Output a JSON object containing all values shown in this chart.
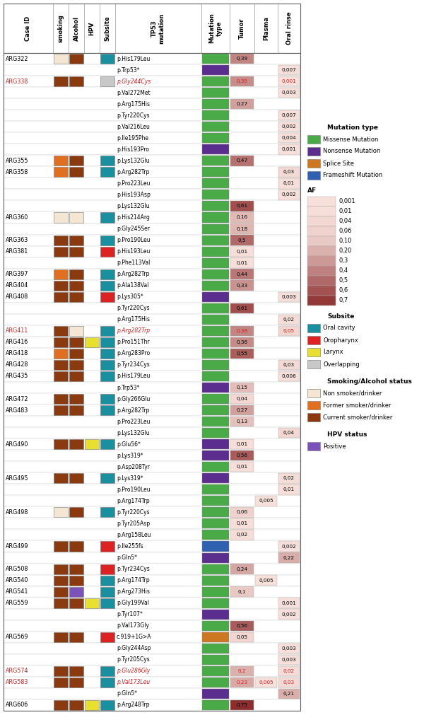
{
  "rows": [
    {
      "case": "ARG322",
      "case_red": false,
      "smoking": "light",
      "alcohol": "brown",
      "hpv": null,
      "subsite": "teal",
      "mutation": "p.His179Leu",
      "mut_red": false,
      "mut_type": "green",
      "tumor": 0.39,
      "plasma": null,
      "oral": null
    },
    {
      "case": "",
      "case_red": false,
      "smoking": null,
      "alcohol": null,
      "hpv": null,
      "subsite": null,
      "mutation": "p.Trp53*",
      "mut_red": false,
      "mut_type": "purple",
      "tumor": null,
      "plasma": null,
      "oral": 0.007
    },
    {
      "case": "ARG338",
      "case_red": true,
      "smoking": "brown",
      "alcohol": "brown",
      "hpv": null,
      "subsite": "gray",
      "mutation": "p.Gly244Cys",
      "mut_red": true,
      "mut_type": "green",
      "tumor": 0.35,
      "plasma": null,
      "oral": 0.001
    },
    {
      "case": "",
      "case_red": false,
      "smoking": null,
      "alcohol": null,
      "hpv": null,
      "subsite": null,
      "mutation": "p.Val272Met",
      "mut_red": false,
      "mut_type": "green",
      "tumor": null,
      "plasma": null,
      "oral": 0.003
    },
    {
      "case": "",
      "case_red": false,
      "smoking": null,
      "alcohol": null,
      "hpv": null,
      "subsite": null,
      "mutation": "p.Arg175His",
      "mut_red": false,
      "mut_type": "green",
      "tumor": 0.27,
      "plasma": null,
      "oral": null
    },
    {
      "case": "",
      "case_red": false,
      "smoking": null,
      "alcohol": null,
      "hpv": null,
      "subsite": null,
      "mutation": "p.Tyr220Cys",
      "mut_red": false,
      "mut_type": "green",
      "tumor": null,
      "plasma": null,
      "oral": 0.007
    },
    {
      "case": "",
      "case_red": false,
      "smoking": null,
      "alcohol": null,
      "hpv": null,
      "subsite": null,
      "mutation": "p.Val216Leu",
      "mut_red": false,
      "mut_type": "green",
      "tumor": null,
      "plasma": null,
      "oral": 0.002
    },
    {
      "case": "",
      "case_red": false,
      "smoking": null,
      "alcohol": null,
      "hpv": null,
      "subsite": null,
      "mutation": "p.Ile195Phe",
      "mut_red": false,
      "mut_type": "green",
      "tumor": null,
      "plasma": null,
      "oral": 0.004
    },
    {
      "case": "",
      "case_red": false,
      "smoking": null,
      "alcohol": null,
      "hpv": null,
      "subsite": null,
      "mutation": "p.His193Pro",
      "mut_red": false,
      "mut_type": "purple",
      "tumor": null,
      "plasma": null,
      "oral": 0.001
    },
    {
      "case": "ARG355",
      "case_red": false,
      "smoking": "orange",
      "alcohol": "brown",
      "hpv": null,
      "subsite": "teal",
      "mutation": "p.Lys132Glu",
      "mut_red": false,
      "mut_type": "green",
      "tumor": 0.47,
      "plasma": null,
      "oral": null
    },
    {
      "case": "ARG358",
      "case_red": false,
      "smoking": "orange",
      "alcohol": "brown",
      "hpv": null,
      "subsite": "teal",
      "mutation": "p.Arg282Trp",
      "mut_red": false,
      "mut_type": "green",
      "tumor": null,
      "plasma": null,
      "oral": 0.03
    },
    {
      "case": "",
      "case_red": false,
      "smoking": null,
      "alcohol": null,
      "hpv": null,
      "subsite": null,
      "mutation": "p.Pro223Leu",
      "mut_red": false,
      "mut_type": "green",
      "tumor": null,
      "plasma": null,
      "oral": 0.01
    },
    {
      "case": "",
      "case_red": false,
      "smoking": null,
      "alcohol": null,
      "hpv": null,
      "subsite": null,
      "mutation": "p.His193Asp",
      "mut_red": false,
      "mut_type": "green",
      "tumor": null,
      "plasma": null,
      "oral": 0.002
    },
    {
      "case": "",
      "case_red": false,
      "smoking": null,
      "alcohol": null,
      "hpv": null,
      "subsite": null,
      "mutation": "p.Lys132Glu",
      "mut_red": false,
      "mut_type": "green",
      "tumor": 0.61,
      "plasma": null,
      "oral": null
    },
    {
      "case": "ARG360",
      "case_red": false,
      "smoking": "light",
      "alcohol": "light",
      "hpv": null,
      "subsite": "teal",
      "mutation": "p.His214Arg",
      "mut_red": false,
      "mut_type": "green",
      "tumor": 0.16,
      "plasma": null,
      "oral": null
    },
    {
      "case": "",
      "case_red": false,
      "smoking": null,
      "alcohol": null,
      "hpv": null,
      "subsite": null,
      "mutation": "p.Gly245Ser",
      "mut_red": false,
      "mut_type": "green",
      "tumor": 0.18,
      "plasma": null,
      "oral": null
    },
    {
      "case": "ARG363",
      "case_red": false,
      "smoking": "brown",
      "alcohol": "brown",
      "hpv": null,
      "subsite": "teal",
      "mutation": "p.Pro190Leu",
      "mut_red": false,
      "mut_type": "green",
      "tumor": 0.5,
      "plasma": null,
      "oral": null
    },
    {
      "case": "ARG381",
      "case_red": false,
      "smoking": "brown",
      "alcohol": "brown",
      "hpv": null,
      "subsite": "red",
      "mutation": "p.His193Leu",
      "mut_red": false,
      "mut_type": "green",
      "tumor": 0.01,
      "plasma": null,
      "oral": null
    },
    {
      "case": "",
      "case_red": false,
      "smoking": null,
      "alcohol": null,
      "hpv": null,
      "subsite": null,
      "mutation": "p.Phe113Val",
      "mut_red": false,
      "mut_type": "green",
      "tumor": 0.01,
      "plasma": null,
      "oral": null
    },
    {
      "case": "ARG397",
      "case_red": false,
      "smoking": "orange",
      "alcohol": "brown",
      "hpv": null,
      "subsite": "teal",
      "mutation": "p.Arg282Trp",
      "mut_red": false,
      "mut_type": "green",
      "tumor": 0.44,
      "plasma": null,
      "oral": null
    },
    {
      "case": "ARG404",
      "case_red": false,
      "smoking": "brown",
      "alcohol": "brown",
      "hpv": null,
      "subsite": "teal",
      "mutation": "p.Ala138Val",
      "mut_red": false,
      "mut_type": "green",
      "tumor": 0.33,
      "plasma": null,
      "oral": null
    },
    {
      "case": "ARG408",
      "case_red": false,
      "smoking": "brown",
      "alcohol": "brown",
      "hpv": null,
      "subsite": "red",
      "mutation": "p.Lys305*",
      "mut_red": false,
      "mut_type": "purple",
      "tumor": null,
      "plasma": null,
      "oral": 0.003
    },
    {
      "case": "",
      "case_red": false,
      "smoking": null,
      "alcohol": null,
      "hpv": null,
      "subsite": null,
      "mutation": "p.Tyr220Cys",
      "mut_red": false,
      "mut_type": "green",
      "tumor": 0.61,
      "plasma": null,
      "oral": null
    },
    {
      "case": "",
      "case_red": false,
      "smoking": null,
      "alcohol": null,
      "hpv": null,
      "subsite": null,
      "mutation": "p.Arg175His",
      "mut_red": false,
      "mut_type": "green",
      "tumor": null,
      "plasma": null,
      "oral": 0.02
    },
    {
      "case": "ARG411",
      "case_red": true,
      "smoking": "brown",
      "alcohol": "light",
      "hpv": null,
      "subsite": "teal",
      "mutation": "p.Arg282Trp",
      "mut_red": true,
      "mut_type": "green",
      "tumor": 0.38,
      "plasma": null,
      "oral": 0.05
    },
    {
      "case": "ARG416",
      "case_red": false,
      "smoking": "brown",
      "alcohol": "brown",
      "hpv": "yellow",
      "subsite": "teal",
      "mutation": "p.Pro151Thr",
      "mut_red": false,
      "mut_type": "green",
      "tumor": 0.36,
      "plasma": null,
      "oral": null
    },
    {
      "case": "ARG418",
      "case_red": false,
      "smoking": "orange",
      "alcohol": "brown",
      "hpv": null,
      "subsite": "teal",
      "mutation": "p.Arg283Pro",
      "mut_red": false,
      "mut_type": "green",
      "tumor": 0.55,
      "plasma": null,
      "oral": null
    },
    {
      "case": "ARG428",
      "case_red": false,
      "smoking": "brown",
      "alcohol": "brown",
      "hpv": null,
      "subsite": "teal",
      "mutation": "p.Tyr234Cys",
      "mut_red": false,
      "mut_type": "green",
      "tumor": null,
      "plasma": null,
      "oral": 0.03
    },
    {
      "case": "ARG435",
      "case_red": false,
      "smoking": "brown",
      "alcohol": "brown",
      "hpv": null,
      "subsite": "teal",
      "mutation": "p.His179Leu",
      "mut_red": false,
      "mut_type": "green",
      "tumor": null,
      "plasma": null,
      "oral": 0.006
    },
    {
      "case": "",
      "case_red": false,
      "smoking": null,
      "alcohol": null,
      "hpv": null,
      "subsite": null,
      "mutation": "p.Trp53*",
      "mut_red": false,
      "mut_type": "purple",
      "tumor": 0.15,
      "plasma": null,
      "oral": null
    },
    {
      "case": "ARG472",
      "case_red": false,
      "smoking": "brown",
      "alcohol": "brown",
      "hpv": null,
      "subsite": "teal",
      "mutation": "p.Gly266Glu",
      "mut_red": false,
      "mut_type": "green",
      "tumor": 0.04,
      "plasma": null,
      "oral": null
    },
    {
      "case": "ARG483",
      "case_red": false,
      "smoking": "brown",
      "alcohol": "brown",
      "hpv": null,
      "subsite": "teal",
      "mutation": "p.Arg282Trp",
      "mut_red": false,
      "mut_type": "green",
      "tumor": 0.27,
      "plasma": null,
      "oral": null
    },
    {
      "case": "",
      "case_red": false,
      "smoking": null,
      "alcohol": null,
      "hpv": null,
      "subsite": null,
      "mutation": "p.Pro223Leu",
      "mut_red": false,
      "mut_type": "green",
      "tumor": 0.13,
      "plasma": null,
      "oral": null
    },
    {
      "case": "",
      "case_red": false,
      "smoking": null,
      "alcohol": null,
      "hpv": null,
      "subsite": null,
      "mutation": "p.Lys132Glu",
      "mut_red": false,
      "mut_type": "green",
      "tumor": null,
      "plasma": null,
      "oral": 0.04
    },
    {
      "case": "ARG490",
      "case_red": false,
      "smoking": "brown",
      "alcohol": "brown",
      "hpv": "yellow",
      "subsite": "teal",
      "mutation": "p.Glu56*",
      "mut_red": false,
      "mut_type": "purple",
      "tumor": 0.01,
      "plasma": null,
      "oral": null
    },
    {
      "case": "",
      "case_red": false,
      "smoking": null,
      "alcohol": null,
      "hpv": null,
      "subsite": null,
      "mutation": "p.Lys319*",
      "mut_red": false,
      "mut_type": "purple",
      "tumor": 0.56,
      "plasma": null,
      "oral": null
    },
    {
      "case": "",
      "case_red": false,
      "smoking": null,
      "alcohol": null,
      "hpv": null,
      "subsite": null,
      "mutation": "p.Asp208Tyr",
      "mut_red": false,
      "mut_type": "green",
      "tumor": 0.01,
      "plasma": null,
      "oral": null
    },
    {
      "case": "ARG495",
      "case_red": false,
      "smoking": "brown",
      "alcohol": "brown",
      "hpv": null,
      "subsite": "teal",
      "mutation": "p.Lys319*",
      "mut_red": false,
      "mut_type": "purple",
      "tumor": null,
      "plasma": null,
      "oral": 0.02
    },
    {
      "case": "",
      "case_red": false,
      "smoking": null,
      "alcohol": null,
      "hpv": null,
      "subsite": null,
      "mutation": "p.Pro190Leu",
      "mut_red": false,
      "mut_type": "green",
      "tumor": null,
      "plasma": null,
      "oral": 0.01
    },
    {
      "case": "",
      "case_red": false,
      "smoking": null,
      "alcohol": null,
      "hpv": null,
      "subsite": null,
      "mutation": "p.Arg174Trp",
      "mut_red": false,
      "mut_type": "green",
      "tumor": null,
      "plasma": 0.005,
      "oral": null
    },
    {
      "case": "ARG498",
      "case_red": false,
      "smoking": "light",
      "alcohol": "brown",
      "hpv": null,
      "subsite": "teal",
      "mutation": "p.Tyr220Cys",
      "mut_red": false,
      "mut_type": "green",
      "tumor": 0.06,
      "plasma": null,
      "oral": null
    },
    {
      "case": "",
      "case_red": false,
      "smoking": null,
      "alcohol": null,
      "hpv": null,
      "subsite": null,
      "mutation": "p.Tyr205Asp",
      "mut_red": false,
      "mut_type": "green",
      "tumor": 0.01,
      "plasma": null,
      "oral": null
    },
    {
      "case": "",
      "case_red": false,
      "smoking": null,
      "alcohol": null,
      "hpv": null,
      "subsite": null,
      "mutation": "p.Arg158Leu",
      "mut_red": false,
      "mut_type": "green",
      "tumor": 0.02,
      "plasma": null,
      "oral": null
    },
    {
      "case": "ARG499",
      "case_red": false,
      "smoking": "brown",
      "alcohol": "brown",
      "hpv": null,
      "subsite": "red",
      "mutation": "p.Ile255fs",
      "mut_red": false,
      "mut_type": "blue",
      "tumor": null,
      "plasma": null,
      "oral": 0.002
    },
    {
      "case": "",
      "case_red": false,
      "smoking": null,
      "alcohol": null,
      "hpv": null,
      "subsite": null,
      "mutation": "p.Gln5*",
      "mut_red": false,
      "mut_type": "purple",
      "tumor": null,
      "plasma": null,
      "oral": 0.22
    },
    {
      "case": "ARG508",
      "case_red": false,
      "smoking": "brown",
      "alcohol": "brown",
      "hpv": null,
      "subsite": "red",
      "mutation": "p.Tyr234Cys",
      "mut_red": false,
      "mut_type": "green",
      "tumor": 0.24,
      "plasma": null,
      "oral": null
    },
    {
      "case": "ARG540",
      "case_red": false,
      "smoking": "brown",
      "alcohol": "brown",
      "hpv": null,
      "subsite": "teal",
      "mutation": "p.Arg174Trp",
      "mut_red": false,
      "mut_type": "green",
      "tumor": null,
      "plasma": 0.005,
      "oral": null
    },
    {
      "case": "ARG541",
      "case_red": false,
      "smoking": "brown",
      "alcohol": "purple",
      "hpv": null,
      "subsite": "teal",
      "mutation": "p.Arg273His",
      "mut_red": false,
      "mut_type": "green",
      "tumor": 0.1,
      "plasma": null,
      "oral": null
    },
    {
      "case": "ARG559",
      "case_red": false,
      "smoking": "brown",
      "alcohol": "brown",
      "hpv": "yellow",
      "subsite": "teal",
      "mutation": "p.Gly199Val",
      "mut_red": false,
      "mut_type": "green",
      "tumor": null,
      "plasma": null,
      "oral": 0.001
    },
    {
      "case": "",
      "case_red": false,
      "smoking": null,
      "alcohol": null,
      "hpv": null,
      "subsite": null,
      "mutation": "p.Tyr107*",
      "mut_red": false,
      "mut_type": "purple",
      "tumor": null,
      "plasma": null,
      "oral": 0.002
    },
    {
      "case": "",
      "case_red": false,
      "smoking": null,
      "alcohol": null,
      "hpv": null,
      "subsite": null,
      "mutation": "p.Val173Gly",
      "mut_red": false,
      "mut_type": "green",
      "tumor": 0.56,
      "plasma": null,
      "oral": null
    },
    {
      "case": "ARG569",
      "case_red": false,
      "smoking": "brown",
      "alcohol": "brown",
      "hpv": null,
      "subsite": "red",
      "mutation": "c.919+1G>A",
      "mut_red": false,
      "mut_type": "orange",
      "tumor": 0.05,
      "plasma": null,
      "oral": null
    },
    {
      "case": "",
      "case_red": false,
      "smoking": null,
      "alcohol": null,
      "hpv": null,
      "subsite": null,
      "mutation": "p.Gly244Asp",
      "mut_red": false,
      "mut_type": "green",
      "tumor": null,
      "plasma": null,
      "oral": 0.003
    },
    {
      "case": "",
      "case_red": false,
      "smoking": null,
      "alcohol": null,
      "hpv": null,
      "subsite": null,
      "mutation": "p.Tyr205Cys",
      "mut_red": false,
      "mut_type": "green",
      "tumor": null,
      "plasma": null,
      "oral": 0.003
    },
    {
      "case": "ARG574",
      "case_red": true,
      "smoking": "brown",
      "alcohol": "brown",
      "hpv": null,
      "subsite": "teal",
      "mutation": "p.Glu286Gly",
      "mut_red": true,
      "mut_type": "green",
      "tumor": 0.2,
      "plasma": null,
      "oral": 0.02
    },
    {
      "case": "ARG583",
      "case_red": true,
      "smoking": "brown",
      "alcohol": "brown",
      "hpv": null,
      "subsite": "teal",
      "mutation": "p.Val173Leu",
      "mut_red": true,
      "mut_type": "green",
      "tumor": 0.23,
      "plasma": 0.005,
      "oral": 0.03
    },
    {
      "case": "",
      "case_red": false,
      "smoking": null,
      "alcohol": null,
      "hpv": null,
      "subsite": null,
      "mutation": "p.Gln5*",
      "mut_red": false,
      "mut_type": "purple",
      "tumor": null,
      "plasma": null,
      "oral": 0.21
    },
    {
      "case": "ARG606",
      "case_red": false,
      "smoking": "brown",
      "alcohol": "brown",
      "hpv": "yellow",
      "subsite": "teal",
      "mutation": "p.Arg248Trp",
      "mut_red": false,
      "mut_type": "green",
      "tumor": 0.75,
      "plasma": null,
      "oral": null
    }
  ],
  "colors": {
    "light_skin": "#f5e6d3",
    "orange": "#e07020",
    "brown": "#8B3A0F",
    "teal": "#1a8fa0",
    "red_subsite": "#dd2222",
    "yellow_subsite": "#e8e030",
    "gray_subsite": "#c8c8c8",
    "yellow_hpv": "#e8e030",
    "purple_hpv": "#7B52B8",
    "green_mut": "#4aaa48",
    "purple_mut": "#5B2D8E",
    "orange_mut": "#CC7722",
    "blue_mut": "#3060B0",
    "red_text": "#CC2222"
  }
}
